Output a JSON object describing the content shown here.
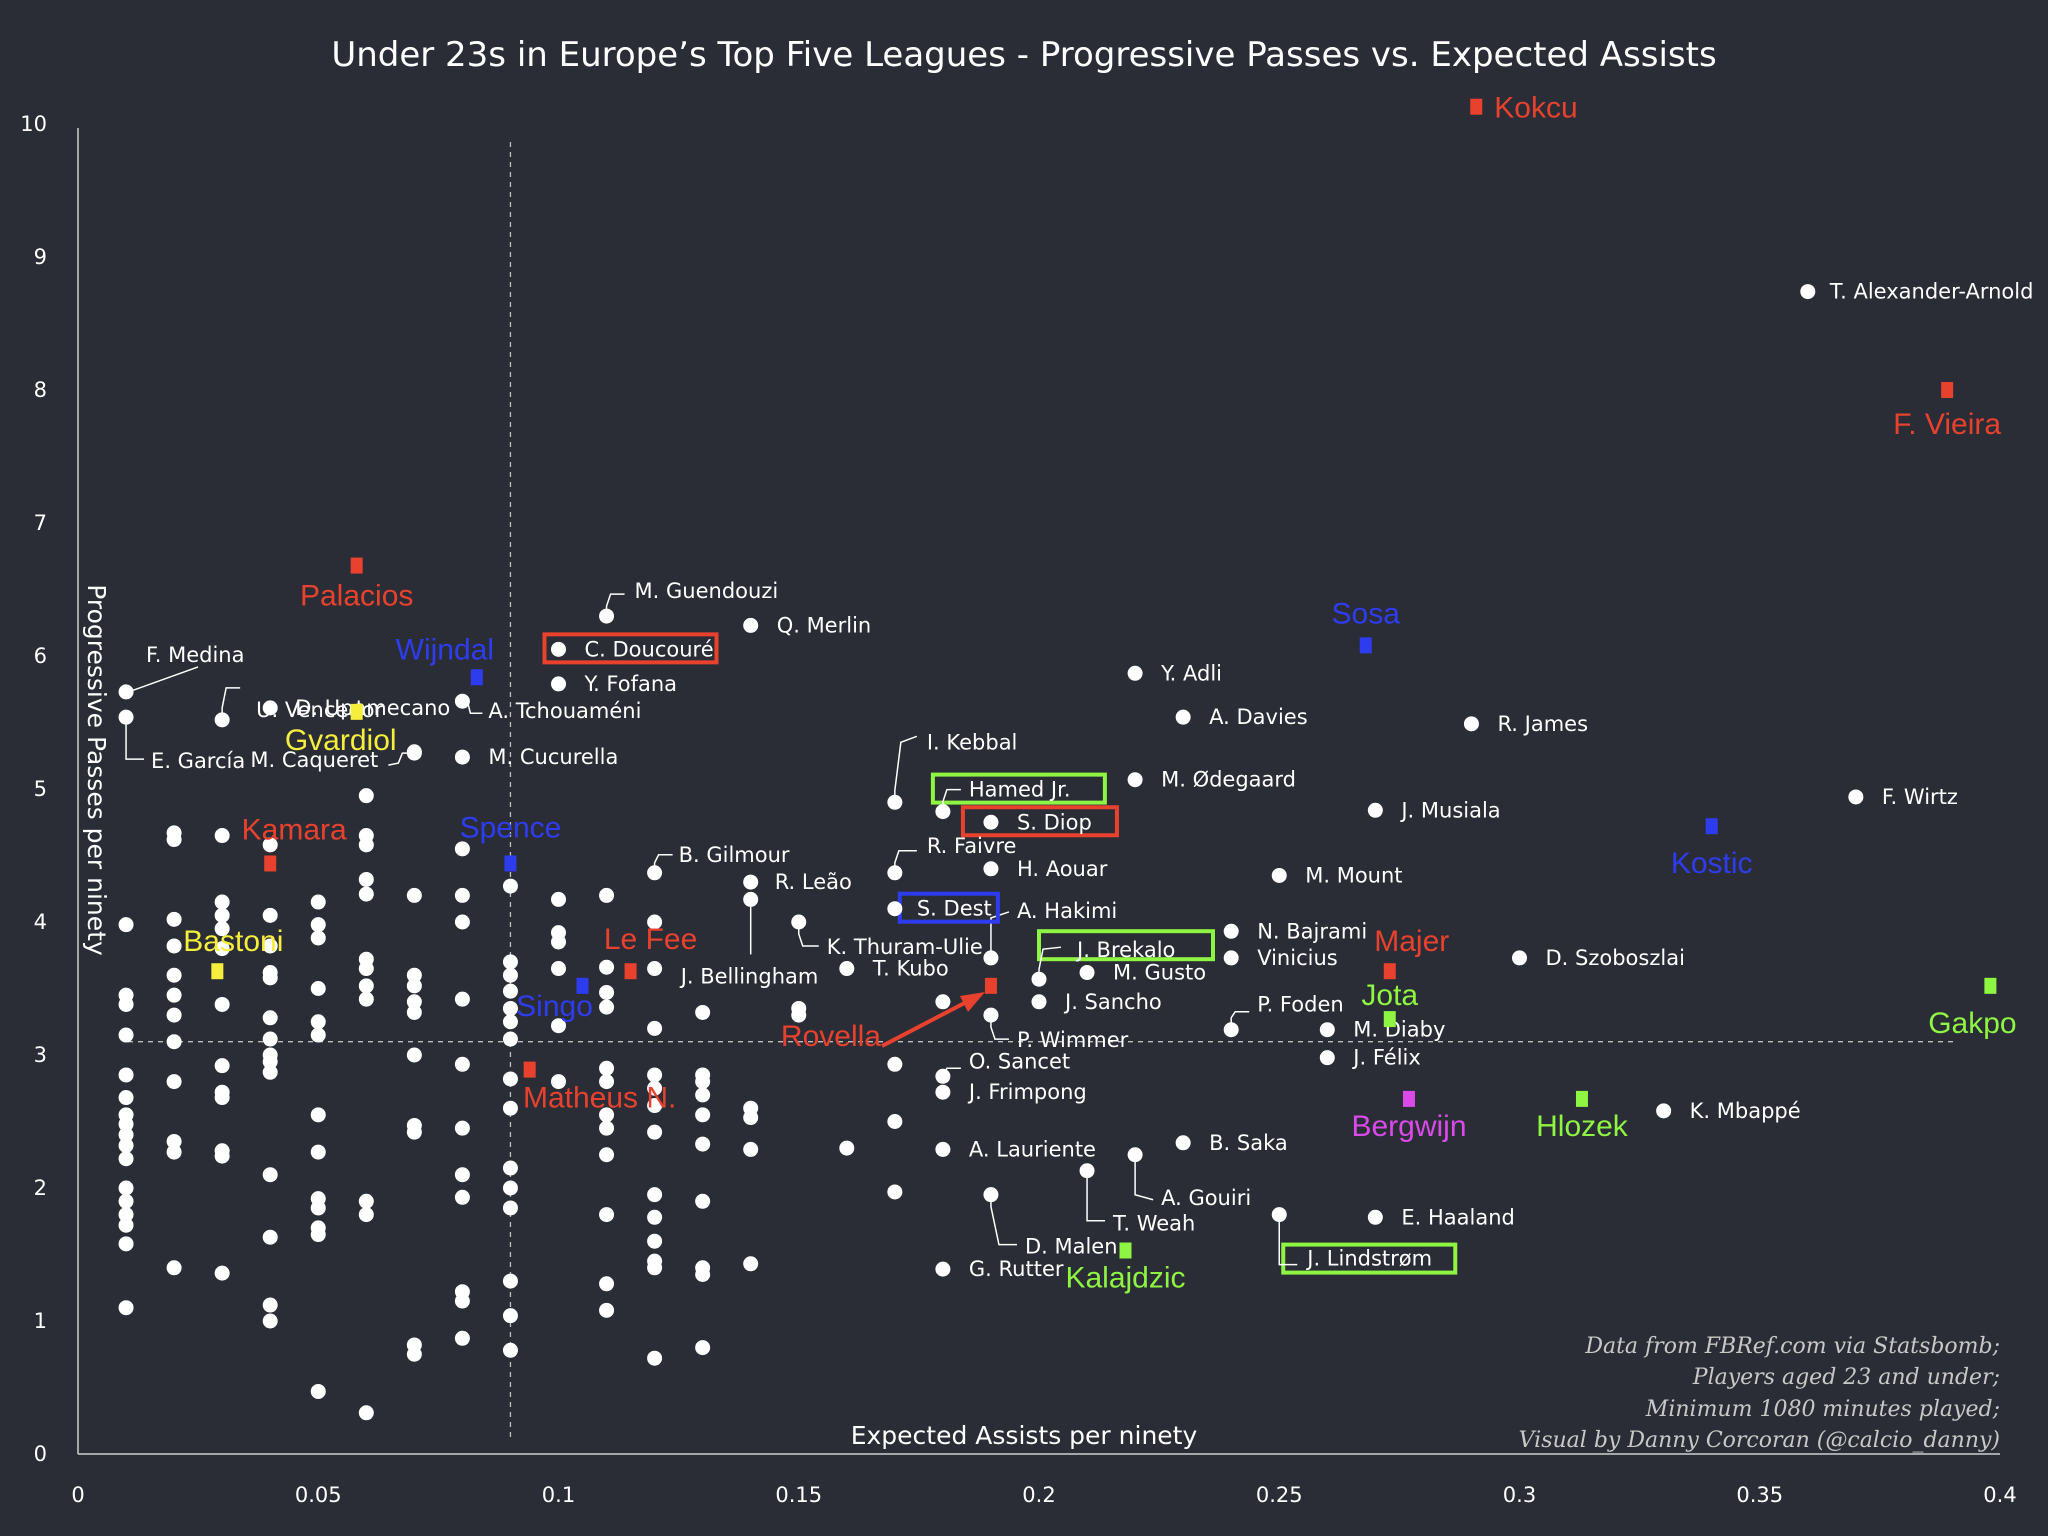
{
  "chart_data": {
    "type": "scatter",
    "title": "Under 23s in Europe’s Top Five Leagues - Progressive Passes vs. Expected Assists",
    "xlabel": "Expected Assists per ninety",
    "ylabel": "Progressive Passes per ninety",
    "xlim": [
      0,
      0.4
    ],
    "ylim": [
      0,
      10
    ],
    "xticks": [
      {
        "v": 0,
        "label": "0"
      },
      {
        "v": 0.05,
        "label": "0.05"
      },
      {
        "v": 0.1,
        "label": "0.1"
      },
      {
        "v": 0.15,
        "label": "0.15"
      },
      {
        "v": 0.2,
        "label": "0.2"
      },
      {
        "v": 0.25,
        "label": "0.25"
      },
      {
        "v": 0.3,
        "label": "0.3"
      },
      {
        "v": 0.35,
        "label": "0.35"
      },
      {
        "v": 0.4,
        "label": "0.4"
      }
    ],
    "yticks": [
      {
        "v": 0,
        "label": "0"
      },
      {
        "v": 1,
        "label": "1"
      },
      {
        "v": 2,
        "label": "2"
      },
      {
        "v": 3,
        "label": "3"
      },
      {
        "v": 4,
        "label": "4"
      },
      {
        "v": 5,
        "label": "5"
      },
      {
        "v": 6,
        "label": "6"
      },
      {
        "v": 7,
        "label": "7"
      },
      {
        "v": 8,
        "label": "8"
      },
      {
        "v": 9,
        "label": "9"
      },
      {
        "v": 10,
        "label": "10"
      }
    ],
    "reference_lines": {
      "x_mean": 0.09,
      "y_mean": 3.1
    },
    "colors": {
      "background": "#2b2d36",
      "point": "#ffffff",
      "red": "#e8412d",
      "cyan": "#8ee6ee",
      "yellow": "#f5ee3c",
      "green": "#8ef542",
      "magenta": "#d94ae8",
      "blue": "#2e3cf0"
    },
    "credits": [
      "Data from FBRef.com via Statsbomb;",
      "Players aged 23 and under;",
      "Minimum 1080 minutes played;",
      "Visual by Danny Corcoran (@calcio_danny)"
    ],
    "highlighted": [
      {
        "name": "Kokcu",
        "x": 0.291,
        "y": 10.13,
        "color": "red"
      },
      {
        "name": "F. Vieira",
        "x": 0.389,
        "y": 8.0,
        "color": "red"
      },
      {
        "name": "Palacios",
        "x": 0.058,
        "y": 6.68,
        "color": "red"
      },
      {
        "name": "Wijndal",
        "x": 0.083,
        "y": 5.84,
        "color": "blue"
      },
      {
        "name": "Gvardiol",
        "x": 0.058,
        "y": 5.58,
        "color": "yellow"
      },
      {
        "name": "Kamara",
        "x": 0.04,
        "y": 4.44,
        "color": "red"
      },
      {
        "name": "Spence",
        "x": 0.09,
        "y": 4.44,
        "color": "blue"
      },
      {
        "name": "Bastoni",
        "x": 0.029,
        "y": 3.63,
        "color": "yellow"
      },
      {
        "name": "Le Fee",
        "x": 0.115,
        "y": 3.63,
        "color": "red"
      },
      {
        "name": "Singo",
        "x": 0.105,
        "y": 3.52,
        "color": "blue"
      },
      {
        "name": "Matheus N.",
        "x": 0.094,
        "y": 2.89,
        "color": "red"
      },
      {
        "name": "Rovella",
        "x": 0.19,
        "y": 3.52,
        "color": "red"
      },
      {
        "name": "Sosa",
        "x": 0.268,
        "y": 6.08,
        "color": "blue"
      },
      {
        "name": "Kostic",
        "x": 0.34,
        "y": 4.72,
        "color": "blue"
      },
      {
        "name": "Majer",
        "x": 0.273,
        "y": 3.63,
        "color": "red"
      },
      {
        "name": "Jota",
        "x": 0.273,
        "y": 3.27,
        "color": "green"
      },
      {
        "name": "Gakpo",
        "x": 0.398,
        "y": 3.52,
        "color": "green"
      },
      {
        "name": "Bergwijn",
        "x": 0.277,
        "y": 2.67,
        "color": "magenta"
      },
      {
        "name": "Hlozek",
        "x": 0.313,
        "y": 2.67,
        "color": "green"
      },
      {
        "name": "Kalajdzic",
        "x": 0.218,
        "y": 1.53,
        "color": "green"
      }
    ],
    "labeled_points": [
      {
        "name": "T. Alexander-Arnold",
        "x": 0.36,
        "y": 8.74
      },
      {
        "name": "F. Wirtz",
        "x": 0.37,
        "y": 4.94
      },
      {
        "name": "R. James",
        "x": 0.29,
        "y": 5.49
      },
      {
        "name": "A. Davies",
        "x": 0.23,
        "y": 5.54
      },
      {
        "name": "Y. Adli",
        "x": 0.22,
        "y": 5.87
      },
      {
        "name": "M. Ødegaard",
        "x": 0.22,
        "y": 5.07
      },
      {
        "name": "J. Musiala",
        "x": 0.27,
        "y": 4.84
      },
      {
        "name": "M. Mount",
        "x": 0.25,
        "y": 4.35
      },
      {
        "name": "D. Szoboszlai",
        "x": 0.3,
        "y": 3.73
      },
      {
        "name": "N. Bajrami",
        "x": 0.24,
        "y": 3.93
      },
      {
        "name": "Vinicius",
        "x": 0.24,
        "y": 3.73
      },
      {
        "name": "P. Foden",
        "x": 0.24,
        "y": 3.19,
        "hasLeader": true
      },
      {
        "name": "M. Diaby",
        "x": 0.26,
        "y": 3.19
      },
      {
        "name": "J. Félix",
        "x": 0.26,
        "y": 2.98
      },
      {
        "name": "K. Mbappé",
        "x": 0.33,
        "y": 2.58
      },
      {
        "name": "E. Haaland",
        "x": 0.27,
        "y": 1.78
      },
      {
        "name": "J. Lindstrøm",
        "x": 0.25,
        "y": 1.8,
        "box": "green"
      },
      {
        "name": "B. Saka",
        "x": 0.23,
        "y": 2.34
      },
      {
        "name": "A. Gouiri",
        "x": 0.22,
        "y": 2.25,
        "hasLeader": true
      },
      {
        "name": "T. Weah",
        "x": 0.21,
        "y": 2.13,
        "hasLeader": true
      },
      {
        "name": "D. Malen",
        "x": 0.19,
        "y": 1.95,
        "hasLeader": true
      },
      {
        "name": "G. Rutter",
        "x": 0.18,
        "y": 1.39
      },
      {
        "name": "A. Lauriente",
        "x": 0.18,
        "y": 2.29
      },
      {
        "name": "J. Frimpong",
        "x": 0.18,
        "y": 2.72
      },
      {
        "name": "O. Sancet",
        "x": 0.18,
        "y": 2.84,
        "hasLeader": true
      },
      {
        "name": "P. Wimmer",
        "x": 0.19,
        "y": 3.3,
        "hasLeader": true
      },
      {
        "name": "J. Sancho",
        "x": 0.2,
        "y": 3.4
      },
      {
        "name": "M. Gusto",
        "x": 0.21,
        "y": 3.62
      },
      {
        "name": "J. Brekalo",
        "x": 0.2,
        "y": 3.57,
        "box": "green",
        "hasLeader": true
      },
      {
        "name": "A. Hakimi",
        "x": 0.19,
        "y": 3.73,
        "hasLeader": true
      },
      {
        "name": "H. Aouar",
        "x": 0.19,
        "y": 4.4
      },
      {
        "name": "S. Dest",
        "x": 0.17,
        "y": 4.1,
        "box": "blue"
      },
      {
        "name": "R. Faivre",
        "x": 0.17,
        "y": 4.37,
        "hasLeader": true
      },
      {
        "name": "S. Diop",
        "x": 0.19,
        "y": 4.75,
        "box": "red"
      },
      {
        "name": "Hamed Jr.",
        "x": 0.18,
        "y": 4.83,
        "box": "green",
        "hasLeader": true
      },
      {
        "name": "I. Kebbal",
        "x": 0.17,
        "y": 4.9,
        "hasLeader": true
      },
      {
        "name": "K. Thuram-Ulie",
        "x": 0.15,
        "y": 4.0,
        "hasLeader": true
      },
      {
        "name": "T. Kubo",
        "x": 0.16,
        "y": 3.65
      },
      {
        "name": "J. Bellingham",
        "x": 0.14,
        "y": 4.17,
        "hasLeader": true
      },
      {
        "name": "R. Leão",
        "x": 0.14,
        "y": 4.3
      },
      {
        "name": "B. Gilmour",
        "x": 0.12,
        "y": 4.37,
        "hasLeader": true
      },
      {
        "name": "Q. Merlin",
        "x": 0.14,
        "y": 6.23
      },
      {
        "name": "M. Guendouzi",
        "x": 0.11,
        "y": 6.3,
        "hasLeader": true
      },
      {
        "name": "C. Doucouré",
        "x": 0.1,
        "y": 6.05,
        "box": "red"
      },
      {
        "name": "Y. Fofana",
        "x": 0.1,
        "y": 5.79
      },
      {
        "name": "A. Tchouaméni",
        "x": 0.08,
        "y": 5.66,
        "hasLeader": true
      },
      {
        "name": "M. Cucurella",
        "x": 0.08,
        "y": 5.24
      },
      {
        "name": "D. Upamecano",
        "x": 0.04,
        "y": 5.61
      },
      {
        "name": "M. Caqueret",
        "x": 0.07,
        "y": 5.27,
        "hasLeader": true
      },
      {
        "name": "U. Vencedor",
        "x": 0.03,
        "y": 5.52,
        "hasLeader": true
      },
      {
        "name": "F. Medina",
        "x": 0.01,
        "y": 5.73,
        "hasLeader": true
      },
      {
        "name": "E. García",
        "x": 0.01,
        "y": 5.54,
        "hasLeader": true
      }
    ],
    "other_points": [
      [
        0.01,
        3.98
      ],
      [
        0.01,
        3.45
      ],
      [
        0.01,
        3.38
      ],
      [
        0.01,
        3.15
      ],
      [
        0.01,
        2.85
      ],
      [
        0.01,
        2.68
      ],
      [
        0.01,
        2.55
      ],
      [
        0.01,
        2.48
      ],
      [
        0.01,
        2.4
      ],
      [
        0.01,
        2.32
      ],
      [
        0.01,
        2.22
      ],
      [
        0.01,
        2.0
      ],
      [
        0.01,
        1.9
      ],
      [
        0.01,
        1.8
      ],
      [
        0.01,
        1.72
      ],
      [
        0.01,
        1.58
      ],
      [
        0.01,
        1.1
      ],
      [
        0.02,
        4.67
      ],
      [
        0.02,
        4.62
      ],
      [
        0.02,
        4.02
      ],
      [
        0.02,
        3.82
      ],
      [
        0.02,
        3.6
      ],
      [
        0.02,
        3.45
      ],
      [
        0.02,
        3.3
      ],
      [
        0.02,
        3.1
      ],
      [
        0.02,
        2.8
      ],
      [
        0.02,
        2.35
      ],
      [
        0.02,
        2.27
      ],
      [
        0.02,
        1.4
      ],
      [
        0.03,
        4.65
      ],
      [
        0.03,
        4.15
      ],
      [
        0.03,
        4.05
      ],
      [
        0.03,
        3.95
      ],
      [
        0.03,
        3.8
      ],
      [
        0.03,
        3.38
      ],
      [
        0.03,
        2.92
      ],
      [
        0.03,
        2.72
      ],
      [
        0.03,
        2.68
      ],
      [
        0.03,
        2.28
      ],
      [
        0.03,
        2.24
      ],
      [
        0.03,
        1.36
      ],
      [
        0.04,
        4.58
      ],
      [
        0.04,
        4.05
      ],
      [
        0.04,
        3.82
      ],
      [
        0.04,
        3.62
      ],
      [
        0.04,
        3.58
      ],
      [
        0.04,
        3.28
      ],
      [
        0.04,
        3.12
      ],
      [
        0.04,
        3.0
      ],
      [
        0.04,
        2.95
      ],
      [
        0.04,
        2.87
      ],
      [
        0.04,
        2.1
      ],
      [
        0.04,
        1.63
      ],
      [
        0.04,
        1.12
      ],
      [
        0.04,
        1.0
      ],
      [
        0.05,
        4.15
      ],
      [
        0.05,
        3.98
      ],
      [
        0.05,
        3.88
      ],
      [
        0.05,
        3.5
      ],
      [
        0.05,
        3.25
      ],
      [
        0.05,
        3.15
      ],
      [
        0.05,
        2.55
      ],
      [
        0.05,
        2.27
      ],
      [
        0.05,
        1.92
      ],
      [
        0.05,
        1.85
      ],
      [
        0.05,
        1.7
      ],
      [
        0.05,
        1.65
      ],
      [
        0.05,
        0.47
      ],
      [
        0.06,
        4.95
      ],
      [
        0.06,
        4.65
      ],
      [
        0.06,
        4.58
      ],
      [
        0.06,
        4.32
      ],
      [
        0.06,
        4.21
      ],
      [
        0.06,
        3.72
      ],
      [
        0.06,
        3.65
      ],
      [
        0.06,
        3.52
      ],
      [
        0.06,
        3.42
      ],
      [
        0.06,
        1.9
      ],
      [
        0.06,
        1.8
      ],
      [
        0.06,
        0.31
      ],
      [
        0.07,
        5.28
      ],
      [
        0.07,
        4.2
      ],
      [
        0.07,
        3.6
      ],
      [
        0.07,
        3.52
      ],
      [
        0.07,
        3.4
      ],
      [
        0.07,
        3.32
      ],
      [
        0.07,
        3.0
      ],
      [
        0.07,
        2.47
      ],
      [
        0.07,
        2.42
      ],
      [
        0.07,
        0.82
      ],
      [
        0.07,
        0.75
      ],
      [
        0.08,
        4.55
      ],
      [
        0.08,
        4.2
      ],
      [
        0.08,
        4.0
      ],
      [
        0.08,
        3.42
      ],
      [
        0.08,
        2.93
      ],
      [
        0.08,
        2.45
      ],
      [
        0.08,
        2.1
      ],
      [
        0.08,
        1.93
      ],
      [
        0.08,
        1.22
      ],
      [
        0.08,
        1.15
      ],
      [
        0.08,
        0.87
      ],
      [
        0.09,
        4.27
      ],
      [
        0.09,
        3.7
      ],
      [
        0.09,
        3.6
      ],
      [
        0.09,
        3.48
      ],
      [
        0.09,
        3.35
      ],
      [
        0.09,
        3.25
      ],
      [
        0.09,
        3.12
      ],
      [
        0.09,
        2.82
      ],
      [
        0.09,
        2.6
      ],
      [
        0.09,
        2.15
      ],
      [
        0.09,
        2.0
      ],
      [
        0.09,
        1.85
      ],
      [
        0.09,
        1.3
      ],
      [
        0.09,
        1.04
      ],
      [
        0.09,
        0.78
      ],
      [
        0.1,
        4.17
      ],
      [
        0.1,
        3.92
      ],
      [
        0.1,
        3.85
      ],
      [
        0.1,
        3.65
      ],
      [
        0.1,
        3.22
      ],
      [
        0.1,
        2.8
      ],
      [
        0.11,
        4.2
      ],
      [
        0.11,
        3.66
      ],
      [
        0.11,
        3.47
      ],
      [
        0.11,
        3.36
      ],
      [
        0.11,
        2.9
      ],
      [
        0.11,
        2.8
      ],
      [
        0.11,
        2.55
      ],
      [
        0.11,
        2.45
      ],
      [
        0.11,
        2.25
      ],
      [
        0.11,
        1.8
      ],
      [
        0.11,
        1.28
      ],
      [
        0.11,
        1.08
      ],
      [
        0.12,
        4.0
      ],
      [
        0.12,
        3.65
      ],
      [
        0.12,
        3.2
      ],
      [
        0.12,
        2.85
      ],
      [
        0.12,
        2.75
      ],
      [
        0.12,
        2.62
      ],
      [
        0.12,
        2.42
      ],
      [
        0.12,
        1.95
      ],
      [
        0.12,
        1.78
      ],
      [
        0.12,
        1.6
      ],
      [
        0.12,
        1.45
      ],
      [
        0.12,
        1.4
      ],
      [
        0.12,
        0.72
      ],
      [
        0.13,
        3.32
      ],
      [
        0.13,
        2.85
      ],
      [
        0.13,
        2.8
      ],
      [
        0.13,
        2.7
      ],
      [
        0.13,
        2.55
      ],
      [
        0.13,
        2.33
      ],
      [
        0.13,
        1.9
      ],
      [
        0.13,
        1.4
      ],
      [
        0.13,
        1.35
      ],
      [
        0.13,
        0.8
      ],
      [
        0.14,
        2.6
      ],
      [
        0.14,
        2.53
      ],
      [
        0.14,
        2.29
      ],
      [
        0.14,
        1.43
      ],
      [
        0.15,
        3.35
      ],
      [
        0.15,
        3.3
      ],
      [
        0.16,
        2.3
      ],
      [
        0.17,
        2.93
      ],
      [
        0.17,
        2.5
      ],
      [
        0.17,
        1.97
      ],
      [
        0.18,
        3.4
      ]
    ]
  }
}
